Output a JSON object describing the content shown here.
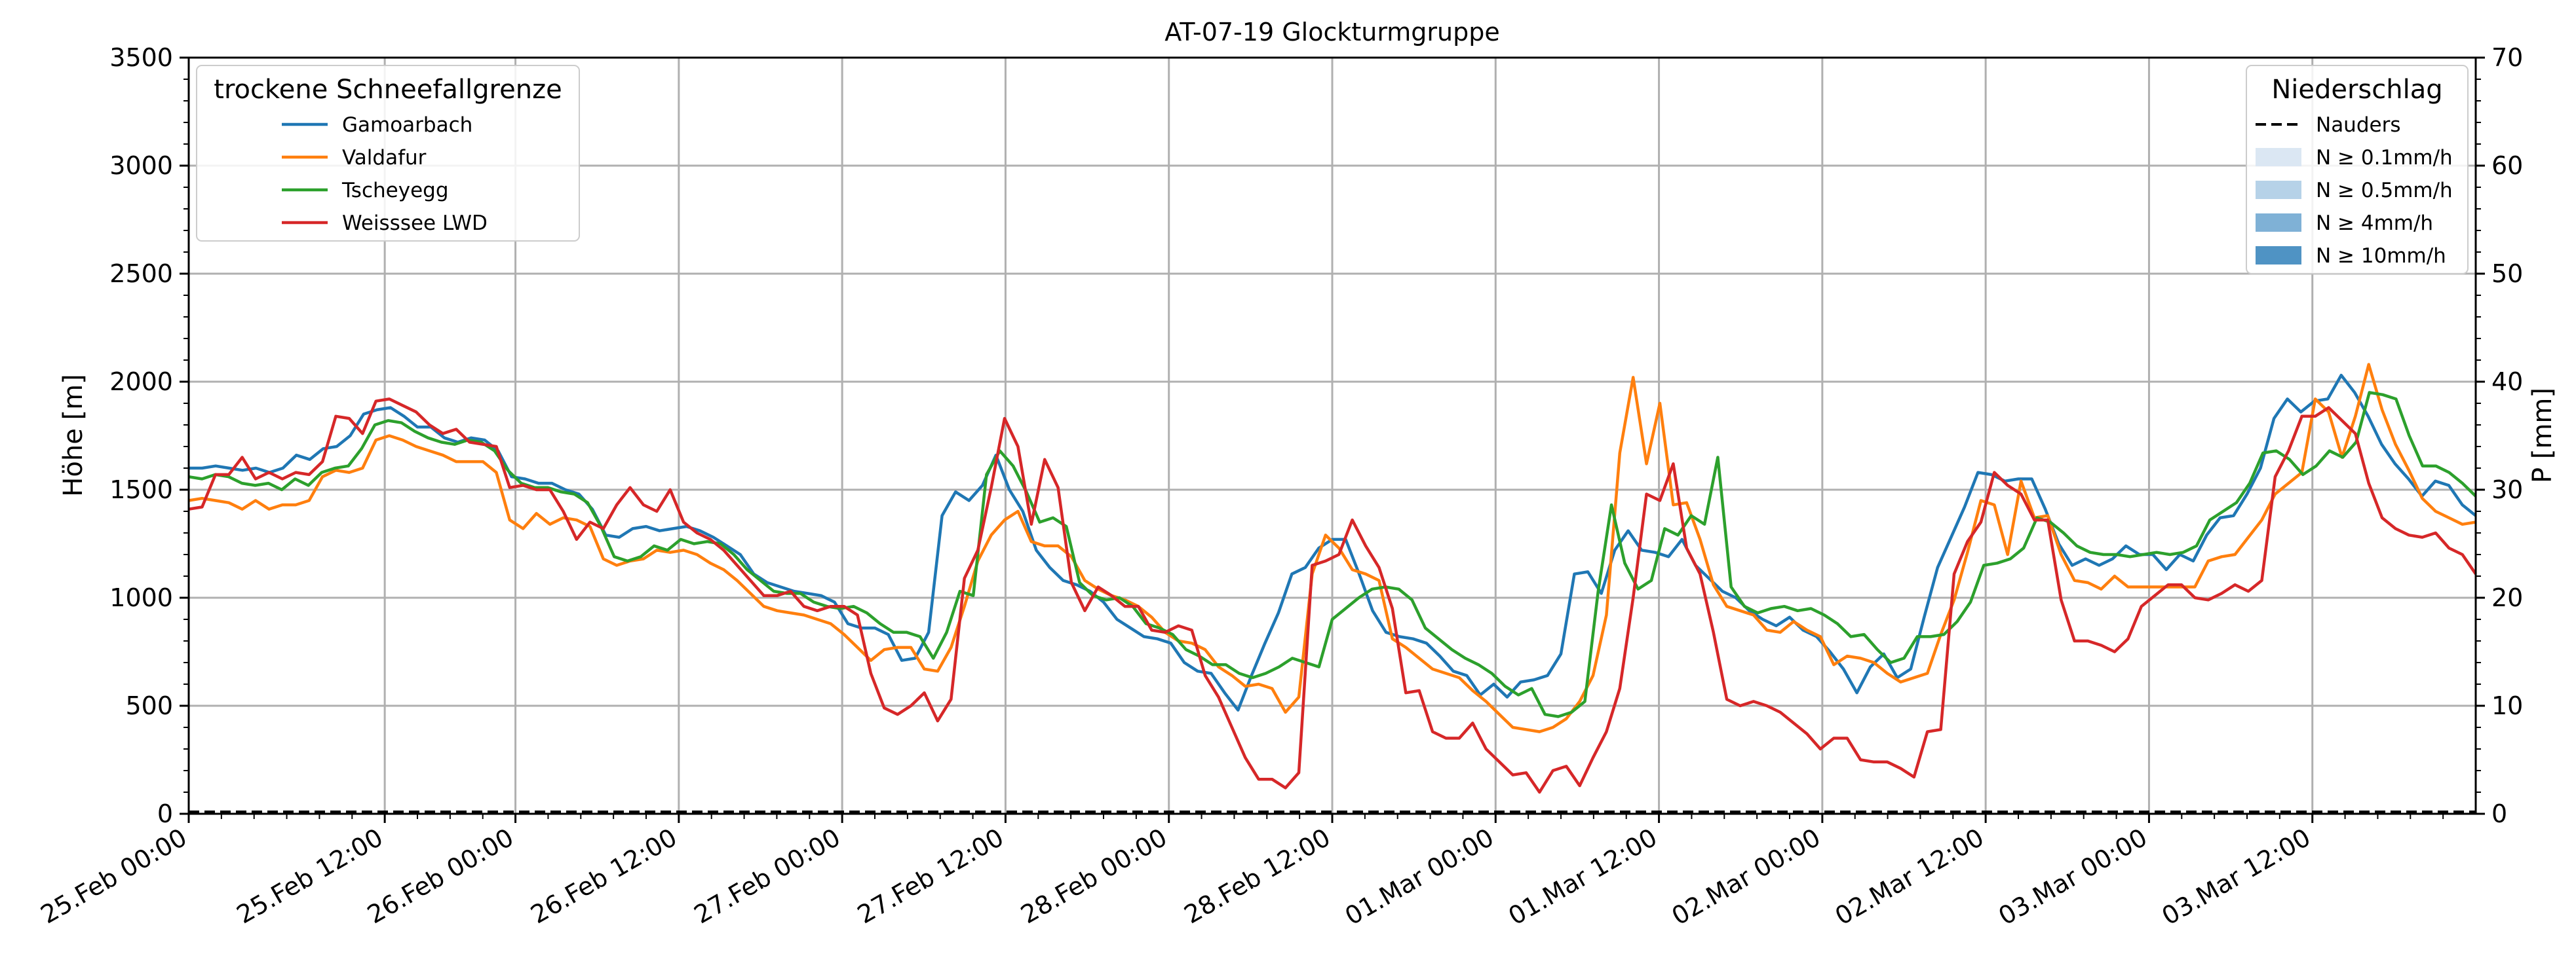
{
  "chart_data": {
    "type": "line",
    "title": "AT-07-19 Glockturmgruppe",
    "ylabel_left": "Höhe [m]",
    "ylabel_right": "P [mm]",
    "ylim_left": [
      0,
      3500
    ],
    "ylim_right": [
      0,
      70
    ],
    "yticks_left": [
      0,
      500,
      1000,
      1500,
      2000,
      2500,
      3000,
      3500
    ],
    "yticks_right": [
      0,
      10,
      20,
      30,
      40,
      50,
      60,
      70
    ],
    "xlim_hours": [
      0,
      210
    ],
    "x_start": "25.Feb 00:00",
    "x_step_hours": 2,
    "xticks": [
      {
        "h": 0,
        "label": "25.Feb 00:00"
      },
      {
        "h": 18,
        "label": "25.Feb 12:00"
      },
      {
        "h": 30,
        "label": "26.Feb 00:00"
      },
      {
        "h": 45,
        "label": "26.Feb 12:00"
      },
      {
        "h": 60,
        "label": "27.Feb 00:00"
      },
      {
        "h": 75,
        "label": "27.Feb 12:00"
      },
      {
        "h": 90,
        "label": "28.Feb 00:00"
      },
      {
        "h": 105,
        "label": "28.Feb 12:00"
      },
      {
        "h": 120,
        "label": "01.Mar 00:00"
      },
      {
        "h": 135,
        "label": "01.Mar 12:00"
      },
      {
        "h": 150,
        "label": "02.Mar 00:00"
      },
      {
        "h": 165,
        "label": "02.Mar 12:00"
      },
      {
        "h": 180,
        "label": "03.Mar 00:00"
      },
      {
        "h": 195,
        "label": "03.Mar 12:00"
      }
    ],
    "grid": true,
    "legend_left": {
      "title": "trockene Schneefallgrenze",
      "placement": "top-left"
    },
    "legend_right": {
      "title": "Niederschlag",
      "placement": "top-right",
      "entries": [
        {
          "label": "Nauders",
          "style": "dashed",
          "color": "#000000"
        },
        {
          "label": "N ≥ 0.1mm/h",
          "color": "#dbe7f3"
        },
        {
          "label": "N ≥ 0.5mm/h",
          "color": "#b6d2e8"
        },
        {
          "label": "N ≥ 4mm/h",
          "color": "#7fb1d6"
        },
        {
          "label": "N ≥ 10mm/h",
          "color": "#4f93c4"
        }
      ]
    },
    "precip_series": {
      "name": "Nauders",
      "values": [
        0,
        0
      ]
    },
    "series": [
      {
        "name": "Gamoarbach",
        "color": "#1f77b4",
        "values": [
          1600,
          1600,
          1610,
          1600,
          1590,
          1600,
          1580,
          1600,
          1660,
          1640,
          1690,
          1700,
          1750,
          1850,
          1870,
          1880,
          1840,
          1790,
          1790,
          1740,
          1720,
          1740,
          1730,
          1680,
          1560,
          1550,
          1530,
          1530,
          1500,
          1480,
          1410,
          1290,
          1280,
          1320,
          1330,
          1310,
          1320,
          1330,
          1310,
          1280,
          1240,
          1200,
          1110,
          1070,
          1050,
          1030,
          1020,
          1010,
          980,
          880,
          860,
          860,
          830,
          710,
          720,
          840,
          1380,
          1490,
          1450,
          1520,
          1660,
          1500,
          1400,
          1220,
          1140,
          1080,
          1060,
          1030,
          980,
          900,
          860,
          820,
          810,
          790,
          700,
          660,
          650,
          560,
          480,
          640,
          790,
          930,
          1110,
          1140,
          1230,
          1270,
          1270,
          1110,
          940,
          840,
          820,
          810,
          790,
          730,
          660,
          640,
          550,
          600,
          540,
          610,
          620,
          640,
          740,
          1110,
          1120,
          1020,
          1220,
          1310,
          1220,
          1210,
          1190,
          1270,
          1150,
          1090,
          1030,
          1000,
          940,
          900,
          870,
          910,
          850,
          820,
          750,
          670,
          560,
          680,
          740,
          630,
          670,
          910,
          1140,
          1280,
          1420,
          1580,
          1570,
          1540,
          1550,
          1550,
          1410,
          1250,
          1150,
          1180,
          1150,
          1180,
          1240,
          1200,
          1200,
          1130,
          1200,
          1170,
          1290,
          1370,
          1380,
          1480,
          1600,
          1830,
          1920,
          1860,
          1910,
          1920,
          2030,
          1950,
          1840,
          1710,
          1620,
          1550,
          1470,
          1540,
          1520,
          1430,
          1380
        ]
      },
      {
        "name": "Valdafur",
        "color": "#ff7f0e",
        "values": [
          1450,
          1460,
          1450,
          1440,
          1410,
          1450,
          1410,
          1430,
          1430,
          1450,
          1560,
          1590,
          1580,
          1600,
          1730,
          1750,
          1730,
          1700,
          1680,
          1660,
          1630,
          1630,
          1630,
          1580,
          1360,
          1320,
          1390,
          1340,
          1370,
          1360,
          1330,
          1180,
          1150,
          1170,
          1180,
          1220,
          1210,
          1220,
          1200,
          1160,
          1130,
          1080,
          1020,
          960,
          940,
          930,
          920,
          900,
          880,
          830,
          770,
          710,
          760,
          770,
          770,
          670,
          660,
          770,
          960,
          1170,
          1290,
          1360,
          1400,
          1260,
          1240,
          1240,
          1190,
          1080,
          1040,
          1010,
          990,
          960,
          910,
          840,
          800,
          790,
          760,
          680,
          640,
          590,
          600,
          580,
          470,
          540,
          1110,
          1290,
          1230,
          1130,
          1110,
          1080,
          810,
          770,
          720,
          670,
          650,
          630,
          570,
          520,
          460,
          400,
          390,
          380,
          400,
          440,
          520,
          640,
          920,
          1670,
          2020,
          1620,
          1900,
          1430,
          1440,
          1270,
          1060,
          960,
          940,
          920,
          850,
          840,
          890,
          850,
          820,
          690,
          730,
          720,
          700,
          650,
          610,
          630,
          650,
          830,
          990,
          1210,
          1450,
          1430,
          1200,
          1540,
          1370,
          1380,
          1200,
          1080,
          1070,
          1040,
          1100,
          1050,
          1050,
          1050,
          1050,
          1050,
          1050,
          1170,
          1190,
          1200,
          1280,
          1360,
          1480,
          1530,
          1580,
          1920,
          1860,
          1650,
          1840,
          2080,
          1870,
          1710,
          1590,
          1460,
          1400,
          1370,
          1340,
          1350
        ]
      },
      {
        "name": "Tscheyegg",
        "color": "#2ca02c",
        "values": [
          1560,
          1550,
          1570,
          1560,
          1530,
          1520,
          1530,
          1500,
          1550,
          1520,
          1580,
          1600,
          1610,
          1690,
          1800,
          1820,
          1810,
          1770,
          1740,
          1720,
          1710,
          1730,
          1720,
          1680,
          1590,
          1530,
          1510,
          1510,
          1490,
          1480,
          1440,
          1330,
          1190,
          1170,
          1190,
          1240,
          1220,
          1270,
          1250,
          1260,
          1250,
          1200,
          1130,
          1080,
          1030,
          1020,
          1020,
          980,
          960,
          950,
          960,
          930,
          880,
          840,
          840,
          820,
          720,
          840,
          1030,
          1010,
          1570,
          1680,
          1610,
          1490,
          1350,
          1370,
          1330,
          1070,
          1010,
          990,
          1000,
          960,
          880,
          860,
          830,
          760,
          730,
          690,
          690,
          650,
          630,
          650,
          680,
          720,
          700,
          680,
          900,
          950,
          1000,
          1040,
          1050,
          1040,
          990,
          860,
          810,
          760,
          720,
          690,
          650,
          590,
          550,
          580,
          460,
          450,
          470,
          520,
          1030,
          1430,
          1160,
          1040,
          1080,
          1320,
          1290,
          1380,
          1340,
          1650,
          1050,
          960,
          930,
          950,
          960,
          940,
          950,
          920,
          880,
          820,
          830,
          760,
          700,
          720,
          820,
          820,
          830,
          890,
          980,
          1150,
          1160,
          1180,
          1230,
          1370,
          1350,
          1300,
          1240,
          1210,
          1200,
          1200,
          1190,
          1200,
          1210,
          1200,
          1210,
          1240,
          1360,
          1400,
          1440,
          1530,
          1670,
          1680,
          1640,
          1570,
          1610,
          1680,
          1650,
          1720,
          1950,
          1940,
          1920,
          1750,
          1610,
          1610,
          1580,
          1530,
          1470
        ]
      },
      {
        "name": "Weisssee LWD",
        "color": "#d62728",
        "values": [
          1410,
          1420,
          1570,
          1570,
          1650,
          1550,
          1580,
          1550,
          1580,
          1570,
          1630,
          1840,
          1830,
          1760,
          1910,
          1920,
          1890,
          1860,
          1800,
          1760,
          1780,
          1720,
          1710,
          1700,
          1510,
          1520,
          1500,
          1500,
          1400,
          1270,
          1350,
          1320,
          1430,
          1510,
          1430,
          1400,
          1500,
          1350,
          1300,
          1270,
          1220,
          1150,
          1080,
          1010,
          1010,
          1030,
          960,
          940,
          960,
          960,
          920,
          650,
          490,
          460,
          500,
          560,
          430,
          530,
          1090,
          1220,
          1510,
          1830,
          1700,
          1340,
          1640,
          1510,
          1070,
          940,
          1050,
          1010,
          960,
          960,
          850,
          840,
          870,
          850,
          640,
          540,
          400,
          260,
          160,
          160,
          120,
          190,
          1150,
          1170,
          1200,
          1360,
          1240,
          1140,
          950,
          560,
          570,
          380,
          350,
          350,
          420,
          300,
          240,
          180,
          190,
          100,
          200,
          220,
          130,
          260,
          380,
          580,
          1000,
          1480,
          1450,
          1620,
          1230,
          1110,
          840,
          530,
          500,
          520,
          500,
          470,
          420,
          370,
          300,
          350,
          350,
          250,
          240,
          240,
          210,
          170,
          380,
          390,
          1110,
          1260,
          1350,
          1580,
          1520,
          1480,
          1360,
          1360,
          990,
          800,
          800,
          780,
          750,
          810,
          960,
          1010,
          1060,
          1060,
          1000,
          990,
          1020,
          1060,
          1030,
          1080,
          1560,
          1680,
          1840,
          1840,
          1880,
          1820,
          1760,
          1530,
          1370,
          1320,
          1290,
          1280,
          1300,
          1230,
          1200,
          1110
        ]
      }
    ]
  }
}
